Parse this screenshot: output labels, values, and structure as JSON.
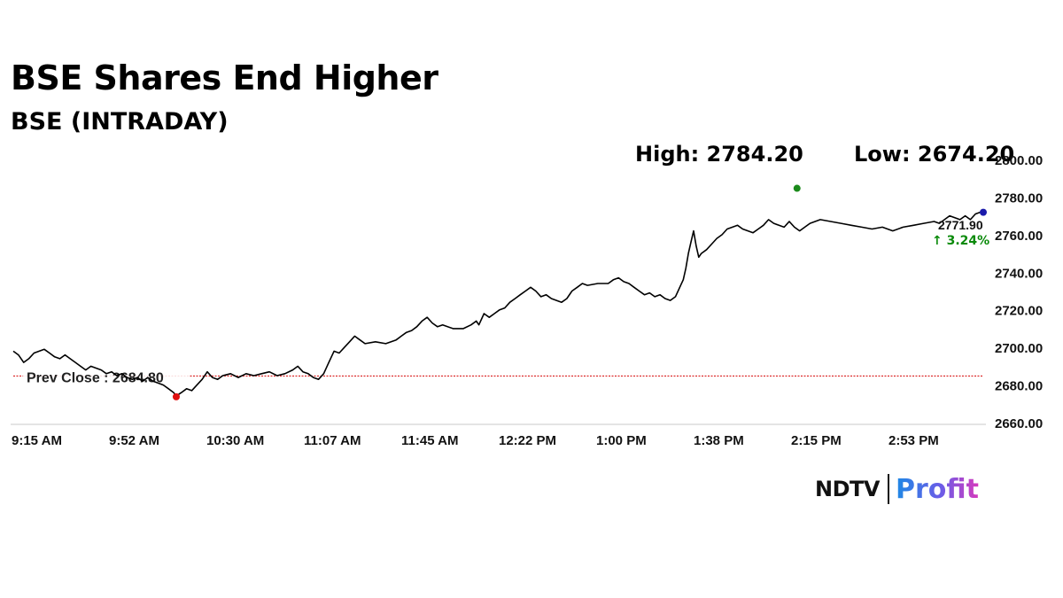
{
  "header": {
    "title": "BSE Shares End Higher",
    "subtitle": "BSE (INTRADAY)",
    "high_label": "High: 2784.20",
    "low_label": "Low: 2674.20"
  },
  "brand": {
    "ndtv": "NDTV",
    "profit": "Profit"
  },
  "chart_data": {
    "type": "line",
    "title": "BSE Shares End Higher",
    "subtitle": "BSE (INTRADAY)",
    "xlabel": "",
    "ylabel": "",
    "x_ticks": [
      "9:15 AM",
      "9:52 AM",
      "10:30 AM",
      "11:07 AM",
      "11:45 AM",
      "12:22 PM",
      "1:00 PM",
      "1:38 PM",
      "2:15 PM",
      "2:53 PM"
    ],
    "y_ticks": [
      "2800.00",
      "2780.00",
      "2760.00",
      "2740.00",
      "2720.00",
      "2700.00",
      "2680.00",
      "2660.00"
    ],
    "ylim": [
      2660,
      2800
    ],
    "xlim_minutes": [
      0,
      375
    ],
    "grid": false,
    "prev_close": {
      "label": "Prev Close : 2684.80",
      "value": 2684.8,
      "color": "#d50000"
    },
    "high": {
      "value": 2784.2,
      "time_min": 303,
      "color": "#1b8a1b"
    },
    "low": {
      "value": 2674.2,
      "time_min": 63,
      "color": "#e01010"
    },
    "last": {
      "value": 2771.9,
      "time_min": 375,
      "label": "2771.90",
      "change": "↑ 3.24%",
      "color": "#1a1aaa",
      "change_color": "#0a8a0a"
    },
    "series": [
      {
        "color": "#000000",
        "points": [
          [
            0,
            2698
          ],
          [
            2,
            2696
          ],
          [
            4,
            2692
          ],
          [
            6,
            2694
          ],
          [
            8,
            2697
          ],
          [
            10,
            2698
          ],
          [
            12,
            2699
          ],
          [
            14,
            2697
          ],
          [
            16,
            2695
          ],
          [
            18,
            2694
          ],
          [
            20,
            2696
          ],
          [
            22,
            2694
          ],
          [
            24,
            2692
          ],
          [
            26,
            2690
          ],
          [
            28,
            2688
          ],
          [
            30,
            2690
          ],
          [
            32,
            2689
          ],
          [
            34,
            2688
          ],
          [
            36,
            2686
          ],
          [
            38,
            2687
          ],
          [
            40,
            2685
          ],
          [
            42,
            2686
          ],
          [
            44,
            2684
          ],
          [
            46,
            2683
          ],
          [
            48,
            2684
          ],
          [
            50,
            2682
          ],
          [
            52,
            2684
          ],
          [
            54,
            2682
          ],
          [
            56,
            2681
          ],
          [
            58,
            2680
          ],
          [
            60,
            2678
          ],
          [
            62,
            2676
          ],
          [
            63,
            2674.2
          ],
          [
            65,
            2676
          ],
          [
            67,
            2678
          ],
          [
            69,
            2677
          ],
          [
            71,
            2680
          ],
          [
            73,
            2683
          ],
          [
            75,
            2687
          ],
          [
            77,
            2684
          ],
          [
            79,
            2683
          ],
          [
            81,
            2685
          ],
          [
            84,
            2686
          ],
          [
            87,
            2684
          ],
          [
            90,
            2686
          ],
          [
            93,
            2685
          ],
          [
            96,
            2686
          ],
          [
            99,
            2687
          ],
          [
            102,
            2685
          ],
          [
            105,
            2686
          ],
          [
            108,
            2688
          ],
          [
            110,
            2690
          ],
          [
            112,
            2687
          ],
          [
            114,
            2686
          ],
          [
            116,
            2684
          ],
          [
            118,
            2683
          ],
          [
            120,
            2686
          ],
          [
            122,
            2692
          ],
          [
            124,
            2698
          ],
          [
            126,
            2697
          ],
          [
            128,
            2700
          ],
          [
            130,
            2703
          ],
          [
            132,
            2706
          ],
          [
            134,
            2704
          ],
          [
            136,
            2702
          ],
          [
            140,
            2703
          ],
          [
            144,
            2702
          ],
          [
            148,
            2704
          ],
          [
            150,
            2706
          ],
          [
            152,
            2708
          ],
          [
            154,
            2709
          ],
          [
            156,
            2711
          ],
          [
            158,
            2714
          ],
          [
            160,
            2716
          ],
          [
            162,
            2713
          ],
          [
            164,
            2711
          ],
          [
            166,
            2712
          ],
          [
            170,
            2710
          ],
          [
            174,
            2710
          ],
          [
            177,
            2712
          ],
          [
            179,
            2714
          ],
          [
            180,
            2712
          ],
          [
            182,
            2718
          ],
          [
            184,
            2716
          ],
          [
            186,
            2718
          ],
          [
            188,
            2720
          ],
          [
            190,
            2721
          ],
          [
            192,
            2724
          ],
          [
            194,
            2726
          ],
          [
            196,
            2728
          ],
          [
            198,
            2730
          ],
          [
            200,
            2732
          ],
          [
            202,
            2730
          ],
          [
            204,
            2727
          ],
          [
            206,
            2728
          ],
          [
            208,
            2726
          ],
          [
            210,
            2725
          ],
          [
            212,
            2724
          ],
          [
            214,
            2726
          ],
          [
            216,
            2730
          ],
          [
            218,
            2732
          ],
          [
            220,
            2734
          ],
          [
            222,
            2733
          ],
          [
            226,
            2734
          ],
          [
            230,
            2734
          ],
          [
            232,
            2736
          ],
          [
            234,
            2737
          ],
          [
            236,
            2735
          ],
          [
            238,
            2734
          ],
          [
            240,
            2732
          ],
          [
            242,
            2730
          ],
          [
            244,
            2728
          ],
          [
            246,
            2729
          ],
          [
            248,
            2727
          ],
          [
            250,
            2728
          ],
          [
            252,
            2726
          ],
          [
            254,
            2725
          ],
          [
            256,
            2727
          ],
          [
            258,
            2733
          ],
          [
            259,
            2736
          ],
          [
            260,
            2742
          ],
          [
            261,
            2750
          ],
          [
            262,
            2756
          ],
          [
            263,
            2762
          ],
          [
            264,
            2754
          ],
          [
            265,
            2748
          ],
          [
            266,
            2750
          ],
          [
            268,
            2752
          ],
          [
            270,
            2755
          ],
          [
            272,
            2758
          ],
          [
            274,
            2760
          ],
          [
            276,
            2763
          ],
          [
            278,
            2764
          ],
          [
            280,
            2765
          ],
          [
            282,
            2763
          ],
          [
            284,
            2762
          ],
          [
            286,
            2761
          ],
          [
            288,
            2763
          ],
          [
            290,
            2765
          ],
          [
            292,
            2768
          ],
          [
            294,
            2766
          ],
          [
            296,
            2765
          ],
          [
            298,
            2764
          ],
          [
            300,
            2767
          ],
          [
            302,
            2764
          ],
          [
            304,
            2762
          ],
          [
            306,
            2764
          ],
          [
            308,
            2766
          ],
          [
            310,
            2767
          ],
          [
            312,
            2768
          ],
          [
            316,
            2767
          ],
          [
            320,
            2766
          ],
          [
            324,
            2765
          ],
          [
            328,
            2764
          ],
          [
            332,
            2763
          ],
          [
            336,
            2764
          ],
          [
            340,
            2762
          ],
          [
            344,
            2764
          ],
          [
            348,
            2765
          ],
          [
            352,
            2766
          ],
          [
            356,
            2767
          ],
          [
            358,
            2766
          ],
          [
            360,
            2768
          ],
          [
            362,
            2770
          ],
          [
            364,
            2769
          ],
          [
            366,
            2768
          ],
          [
            368,
            2770
          ],
          [
            370,
            2768
          ],
          [
            372,
            2771
          ],
          [
            374,
            2772
          ],
          [
            375,
            2771.9
          ]
        ]
      }
    ]
  }
}
